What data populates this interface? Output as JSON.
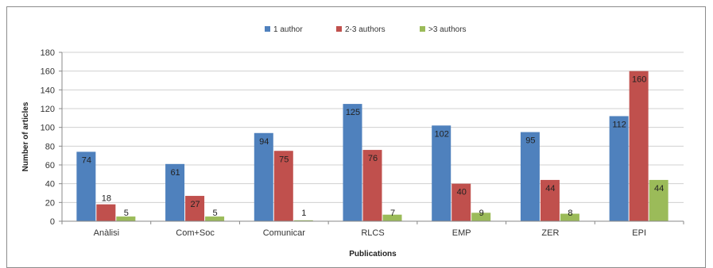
{
  "chart_data": {
    "type": "bar",
    "title": "",
    "xlabel": "Publications",
    "ylabel": "Number of articles",
    "ylim": [
      0,
      180
    ],
    "yticks": [
      0,
      20,
      40,
      60,
      80,
      100,
      120,
      140,
      160,
      180
    ],
    "grid": true,
    "legend_position": "top",
    "categories": [
      "Anàlisi",
      "Com+Soc",
      "Comunicar",
      "RLCS",
      "EMP",
      "ZER",
      "EPI"
    ],
    "series": [
      {
        "name": "1 author",
        "color": "#4F81BD",
        "values": [
          74,
          61,
          94,
          125,
          102,
          95,
          112
        ]
      },
      {
        "name": "2-3 authors",
        "color": "#C0504D",
        "values": [
          18,
          27,
          75,
          76,
          40,
          44,
          160
        ]
      },
      {
        "name": ">3 authors",
        "color": "#9BBB59",
        "values": [
          5,
          5,
          1,
          7,
          9,
          8,
          44
        ]
      }
    ]
  }
}
